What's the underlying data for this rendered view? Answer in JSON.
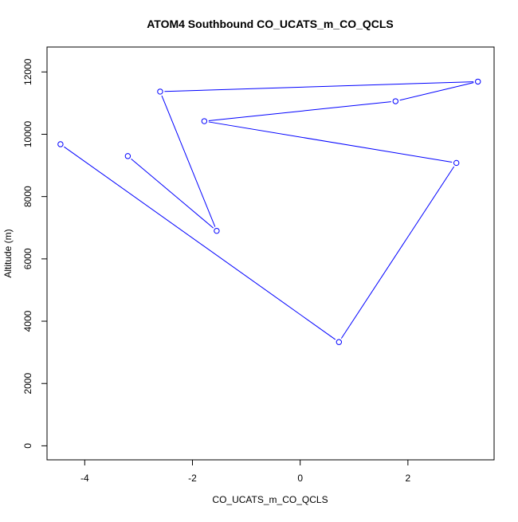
{
  "chart_data": {
    "type": "line",
    "title": "ATOM4 Southbound CO_UCATS_m_CO_QCLS",
    "xlabel": "CO_UCATS_m_CO_QCLS",
    "ylabel": "Altitude (m)",
    "xlim": [
      -4.7,
      3.6
    ],
    "ylim": [
      -450,
      12800
    ],
    "xticks": [
      -4,
      -2,
      0,
      2
    ],
    "xtick_labels": [
      "-4",
      "-2",
      "0",
      "2"
    ],
    "yticks": [
      0,
      2000,
      4000,
      6000,
      8000,
      10000,
      12000
    ],
    "ytick_labels": [
      "0",
      "2000",
      "4000",
      "6000",
      "8000",
      "10000",
      "12000"
    ],
    "grid": false,
    "legend": "none",
    "series": [
      {
        "color": "#0000ff",
        "marker": "open-circle",
        "points": [
          {
            "x": -3.2,
            "y": 9300
          },
          {
            "x": -1.55,
            "y": 6900
          },
          {
            "x": -2.6,
            "y": 11370
          },
          {
            "x": 3.3,
            "y": 11690
          },
          {
            "x": 1.77,
            "y": 11060
          },
          {
            "x": -1.78,
            "y": 10420
          },
          {
            "x": 2.9,
            "y": 9080
          },
          {
            "x": 0.72,
            "y": 3330
          },
          {
            "x": -4.45,
            "y": 9680
          }
        ]
      }
    ]
  }
}
